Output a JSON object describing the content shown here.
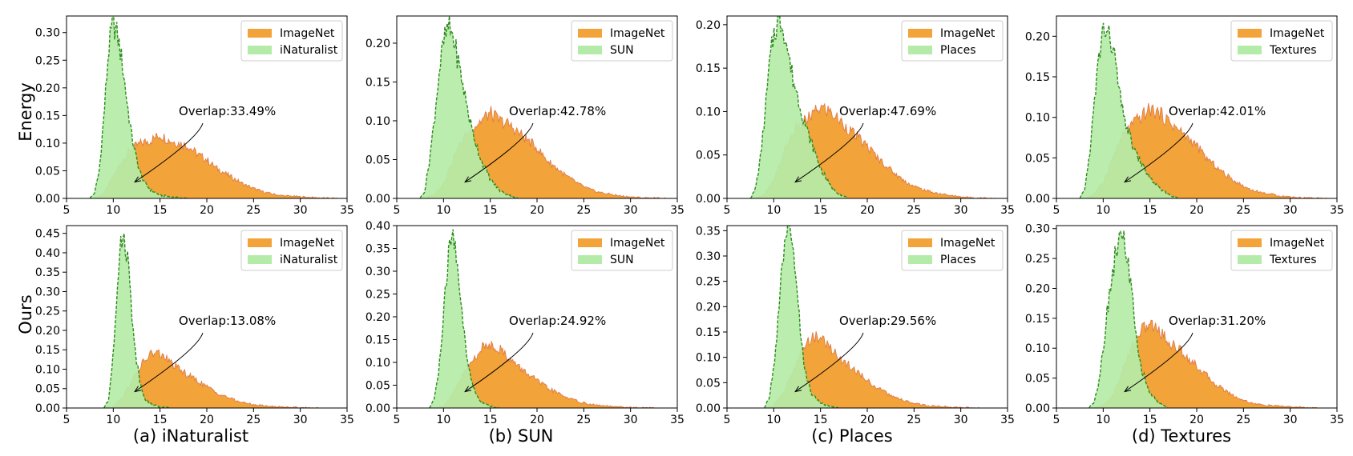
{
  "colors": {
    "imagenet_fill": "#F2A33A",
    "imagenet_edge": "#E07A4A",
    "ood_fill": "#B5EBA8",
    "ood_edge": "#2E8B1E"
  },
  "row_labels": [
    "Energy",
    "Ours"
  ],
  "col_captions": [
    "(a) iNaturalist",
    "(b) SUN",
    "(c) Places",
    "(d) Textures"
  ],
  "chart_data": [
    {
      "type": "area",
      "row": "Energy",
      "column": "(a) iNaturalist",
      "xlim": [
        5,
        35
      ],
      "ylim": [
        0,
        0.33
      ],
      "xticks": [
        5,
        10,
        15,
        20,
        25,
        30,
        35
      ],
      "yticks": [
        "0.00",
        "0.05",
        "0.10",
        "0.15",
        "0.20",
        "0.25",
        "0.30"
      ],
      "legend": [
        "ImageNet",
        "iNaturalist"
      ],
      "legend_position": "top-right",
      "annotation": "Overlap:33.49%",
      "series": [
        {
          "name": "ImageNet",
          "x": [
            8,
            9,
            10,
            11,
            12,
            13,
            14,
            15,
            16,
            17,
            18,
            19,
            20,
            21,
            22,
            23,
            24,
            25,
            26,
            27,
            28,
            29,
            30,
            31,
            32,
            33,
            34
          ],
          "values": [
            0.0,
            0.01,
            0.04,
            0.07,
            0.09,
            0.1,
            0.105,
            0.115,
            0.105,
            0.1,
            0.095,
            0.08,
            0.07,
            0.055,
            0.045,
            0.035,
            0.025,
            0.018,
            0.012,
            0.008,
            0.005,
            0.004,
            0.003,
            0.002,
            0.001,
            0.0005,
            0.0
          ]
        },
        {
          "name": "iNaturalist",
          "x": [
            7.5,
            8,
            8.5,
            9,
            9.5,
            10,
            10.5,
            11,
            11.5,
            12,
            12.5,
            13,
            13.5,
            14,
            15,
            16,
            17,
            18
          ],
          "values": [
            0.0,
            0.01,
            0.05,
            0.15,
            0.27,
            0.32,
            0.29,
            0.24,
            0.17,
            0.11,
            0.07,
            0.04,
            0.025,
            0.015,
            0.006,
            0.003,
            0.001,
            0.0
          ]
        }
      ]
    },
    {
      "type": "area",
      "row": "Energy",
      "column": "(b) SUN",
      "xlim": [
        5,
        35
      ],
      "ylim": [
        0,
        0.235
      ],
      "xticks": [
        5,
        10,
        15,
        20,
        25,
        30,
        35
      ],
      "yticks": [
        "0.00",
        "0.05",
        "0.10",
        "0.15",
        "0.20"
      ],
      "legend": [
        "ImageNet",
        "SUN"
      ],
      "legend_position": "top-right",
      "annotation": "Overlap:42.78%",
      "series": [
        {
          "name": "ImageNet",
          "x": [
            8,
            9,
            10,
            11,
            12,
            13,
            14,
            15,
            16,
            17,
            18,
            19,
            20,
            21,
            22,
            23,
            24,
            25,
            26,
            27,
            28,
            29,
            30,
            31,
            32,
            33,
            34
          ],
          "values": [
            0.0,
            0.005,
            0.02,
            0.05,
            0.075,
            0.09,
            0.1,
            0.11,
            0.1,
            0.095,
            0.085,
            0.075,
            0.065,
            0.05,
            0.04,
            0.03,
            0.022,
            0.015,
            0.01,
            0.007,
            0.005,
            0.003,
            0.002,
            0.001,
            0.0007,
            0.0003,
            0.0
          ]
        },
        {
          "name": "SUN",
          "x": [
            7.5,
            8,
            8.5,
            9,
            9.5,
            10,
            10.5,
            11,
            11.5,
            12,
            12.5,
            13,
            13.5,
            14,
            15,
            16,
            17,
            18
          ],
          "values": [
            0.0,
            0.01,
            0.05,
            0.1,
            0.16,
            0.2,
            0.22,
            0.21,
            0.18,
            0.15,
            0.12,
            0.09,
            0.07,
            0.05,
            0.025,
            0.01,
            0.004,
            0.0
          ]
        }
      ]
    },
    {
      "type": "area",
      "row": "Energy",
      "column": "(c) Places",
      "xlim": [
        5,
        35
      ],
      "ylim": [
        0,
        0.21
      ],
      "xticks": [
        5,
        10,
        15,
        20,
        25,
        30,
        35
      ],
      "yticks": [
        "0.00",
        "0.05",
        "0.10",
        "0.15",
        "0.20"
      ],
      "legend": [
        "ImageNet",
        "Places"
      ],
      "legend_position": "top-right",
      "annotation": "Overlap:47.69%",
      "series": [
        {
          "name": "ImageNet",
          "x": [
            8,
            9,
            10,
            11,
            12,
            13,
            14,
            15,
            16,
            17,
            18,
            19,
            20,
            21,
            22,
            23,
            24,
            25,
            26,
            27,
            28,
            29,
            30,
            31,
            32,
            33,
            34
          ],
          "values": [
            0.0,
            0.005,
            0.02,
            0.05,
            0.075,
            0.085,
            0.095,
            0.105,
            0.1,
            0.09,
            0.08,
            0.07,
            0.06,
            0.048,
            0.038,
            0.028,
            0.02,
            0.014,
            0.01,
            0.007,
            0.005,
            0.003,
            0.002,
            0.001,
            0.0007,
            0.0003,
            0.0
          ]
        },
        {
          "name": "Places",
          "x": [
            7.5,
            8,
            8.5,
            9,
            9.5,
            10,
            10.5,
            11,
            11.5,
            12,
            12.5,
            13,
            13.5,
            14,
            15,
            16,
            17,
            18
          ],
          "values": [
            0.0,
            0.01,
            0.04,
            0.09,
            0.15,
            0.19,
            0.205,
            0.2,
            0.17,
            0.14,
            0.12,
            0.1,
            0.08,
            0.065,
            0.035,
            0.015,
            0.005,
            0.0
          ]
        }
      ]
    },
    {
      "type": "area",
      "row": "Energy",
      "column": "(d) Textures",
      "xlim": [
        5,
        35
      ],
      "ylim": [
        0,
        0.225
      ],
      "xticks": [
        5,
        10,
        15,
        20,
        25,
        30,
        35
      ],
      "yticks": [
        "0.00",
        "0.05",
        "0.10",
        "0.15",
        "0.20"
      ],
      "legend": [
        "ImageNet",
        "Textures"
      ],
      "legend_position": "top-right",
      "annotation": "Overlap:42.01%",
      "series": [
        {
          "name": "ImageNet",
          "x": [
            8,
            9,
            10,
            11,
            12,
            13,
            14,
            15,
            16,
            17,
            18,
            19,
            20,
            21,
            22,
            23,
            24,
            25,
            26,
            27,
            28,
            29,
            30,
            31,
            32,
            33,
            34
          ],
          "values": [
            0.0,
            0.005,
            0.02,
            0.05,
            0.075,
            0.09,
            0.1,
            0.11,
            0.105,
            0.095,
            0.085,
            0.075,
            0.065,
            0.05,
            0.04,
            0.03,
            0.022,
            0.015,
            0.01,
            0.007,
            0.005,
            0.003,
            0.002,
            0.001,
            0.0007,
            0.0003,
            0.0
          ]
        },
        {
          "name": "Textures",
          "x": [
            7.5,
            8,
            8.5,
            9,
            9.5,
            10,
            10.5,
            11,
            11.5,
            12,
            12.5,
            13,
            13.5,
            14,
            15,
            16,
            17,
            18
          ],
          "values": [
            0.0,
            0.01,
            0.05,
            0.11,
            0.17,
            0.21,
            0.2,
            0.19,
            0.15,
            0.11,
            0.09,
            0.07,
            0.055,
            0.045,
            0.025,
            0.012,
            0.005,
            0.0
          ]
        }
      ]
    },
    {
      "type": "area",
      "row": "Ours",
      "column": "(a) iNaturalist",
      "xlim": [
        5,
        35
      ],
      "ylim": [
        0,
        0.47
      ],
      "xticks": [
        5,
        10,
        15,
        20,
        25,
        30,
        35
      ],
      "yticks": [
        "0.00",
        "0.05",
        "0.10",
        "0.15",
        "0.20",
        "0.25",
        "0.30",
        "0.35",
        "0.40",
        "0.45"
      ],
      "legend": [
        "ImageNet",
        "iNaturalist"
      ],
      "legend_position": "top-right",
      "annotation": "Overlap:13.08%",
      "series": [
        {
          "name": "ImageNet",
          "x": [
            9,
            10,
            11,
            12,
            13,
            14,
            15,
            16,
            17,
            18,
            19,
            20,
            21,
            22,
            23,
            24,
            25,
            26,
            27,
            28,
            29,
            30,
            31,
            32
          ],
          "values": [
            0.0,
            0.005,
            0.03,
            0.07,
            0.11,
            0.14,
            0.14,
            0.12,
            0.1,
            0.085,
            0.07,
            0.055,
            0.04,
            0.03,
            0.02,
            0.013,
            0.009,
            0.006,
            0.004,
            0.003,
            0.002,
            0.001,
            0.0005,
            0.0
          ]
        },
        {
          "name": "iNaturalist",
          "x": [
            9,
            9.5,
            10,
            10.5,
            11,
            11.5,
            12,
            12.5,
            13,
            13.5,
            14,
            15,
            16
          ],
          "values": [
            0.0,
            0.02,
            0.15,
            0.35,
            0.45,
            0.4,
            0.24,
            0.12,
            0.05,
            0.02,
            0.01,
            0.003,
            0.0
          ]
        }
      ]
    },
    {
      "type": "area",
      "row": "Ours",
      "column": "(b) SUN",
      "xlim": [
        5,
        35
      ],
      "ylim": [
        0,
        0.4
      ],
      "xticks": [
        5,
        10,
        15,
        20,
        25,
        30,
        35
      ],
      "yticks": [
        "0.00",
        "0.05",
        "0.10",
        "0.15",
        "0.20",
        "0.25",
        "0.30",
        "0.35",
        "0.40"
      ],
      "legend": [
        "ImageNet",
        "SUN"
      ],
      "legend_position": "top-right",
      "annotation": "Overlap:24.92%",
      "series": [
        {
          "name": "ImageNet",
          "x": [
            9,
            10,
            11,
            12,
            13,
            14,
            15,
            16,
            17,
            18,
            19,
            20,
            21,
            22,
            23,
            24,
            25,
            26,
            27,
            28,
            29,
            30,
            31,
            32,
            33
          ],
          "values": [
            0.0,
            0.005,
            0.03,
            0.07,
            0.1,
            0.13,
            0.14,
            0.13,
            0.11,
            0.09,
            0.075,
            0.06,
            0.045,
            0.035,
            0.025,
            0.017,
            0.011,
            0.007,
            0.005,
            0.003,
            0.002,
            0.001,
            0.0007,
            0.0003,
            0.0
          ]
        },
        {
          "name": "SUN",
          "x": [
            8.5,
            9,
            9.5,
            10,
            10.5,
            11,
            11.5,
            12,
            12.5,
            13,
            13.5,
            14,
            15,
            16
          ],
          "values": [
            0.0,
            0.02,
            0.08,
            0.2,
            0.33,
            0.38,
            0.32,
            0.2,
            0.11,
            0.06,
            0.03,
            0.015,
            0.004,
            0.0
          ]
        }
      ]
    },
    {
      "type": "area",
      "row": "Ours",
      "column": "(c) Places",
      "xlim": [
        5,
        35
      ],
      "ylim": [
        0,
        0.36
      ],
      "xticks": [
        5,
        10,
        15,
        20,
        25,
        30,
        35
      ],
      "yticks": [
        "0.00",
        "0.05",
        "0.10",
        "0.15",
        "0.20",
        "0.25",
        "0.30",
        "0.35"
      ],
      "legend": [
        "ImageNet",
        "Places"
      ],
      "legend_position": "top-right",
      "annotation": "Overlap:29.56%",
      "series": [
        {
          "name": "ImageNet",
          "x": [
            9,
            10,
            11,
            12,
            13,
            14,
            15,
            16,
            17,
            18,
            19,
            20,
            21,
            22,
            23,
            24,
            25,
            26,
            27,
            28,
            29,
            30,
            31,
            32
          ],
          "values": [
            0.0,
            0.005,
            0.03,
            0.07,
            0.11,
            0.14,
            0.14,
            0.12,
            0.1,
            0.085,
            0.07,
            0.055,
            0.04,
            0.03,
            0.02,
            0.014,
            0.009,
            0.006,
            0.004,
            0.003,
            0.002,
            0.001,
            0.0005,
            0.0
          ]
        },
        {
          "name": "Places",
          "x": [
            9,
            9.5,
            10,
            10.5,
            11,
            11.5,
            12,
            12.5,
            13,
            13.5,
            14,
            15,
            16,
            17
          ],
          "values": [
            0.0,
            0.02,
            0.08,
            0.18,
            0.3,
            0.35,
            0.32,
            0.22,
            0.12,
            0.06,
            0.03,
            0.01,
            0.003,
            0.0
          ]
        }
      ]
    },
    {
      "type": "area",
      "row": "Ours",
      "column": "(d) Textures",
      "xlim": [
        5,
        35
      ],
      "ylim": [
        0,
        0.305
      ],
      "xticks": [
        5,
        10,
        15,
        20,
        25,
        30,
        35
      ],
      "yticks": [
        "0.00",
        "0.05",
        "0.10",
        "0.15",
        "0.20",
        "0.25",
        "0.30"
      ],
      "legend": [
        "ImageNet",
        "Textures"
      ],
      "legend_position": "top-right",
      "annotation": "Overlap:31.20%",
      "series": [
        {
          "name": "ImageNet",
          "x": [
            9,
            10,
            11,
            12,
            13,
            14,
            15,
            16,
            17,
            18,
            19,
            20,
            21,
            22,
            23,
            24,
            25,
            26,
            27,
            28,
            29,
            30,
            31,
            32,
            33
          ],
          "values": [
            0.0,
            0.005,
            0.02,
            0.06,
            0.1,
            0.13,
            0.14,
            0.13,
            0.11,
            0.1,
            0.085,
            0.07,
            0.055,
            0.04,
            0.03,
            0.02,
            0.013,
            0.008,
            0.005,
            0.004,
            0.003,
            0.002,
            0.001,
            0.0005,
            0.0
          ]
        },
        {
          "name": "Textures",
          "x": [
            8.5,
            9,
            9.5,
            10,
            10.5,
            11,
            11.5,
            12,
            12.5,
            13,
            13.5,
            14,
            15,
            16,
            17
          ],
          "values": [
            0.0,
            0.01,
            0.04,
            0.1,
            0.17,
            0.23,
            0.27,
            0.29,
            0.26,
            0.2,
            0.12,
            0.07,
            0.025,
            0.008,
            0.0
          ]
        }
      ]
    }
  ]
}
